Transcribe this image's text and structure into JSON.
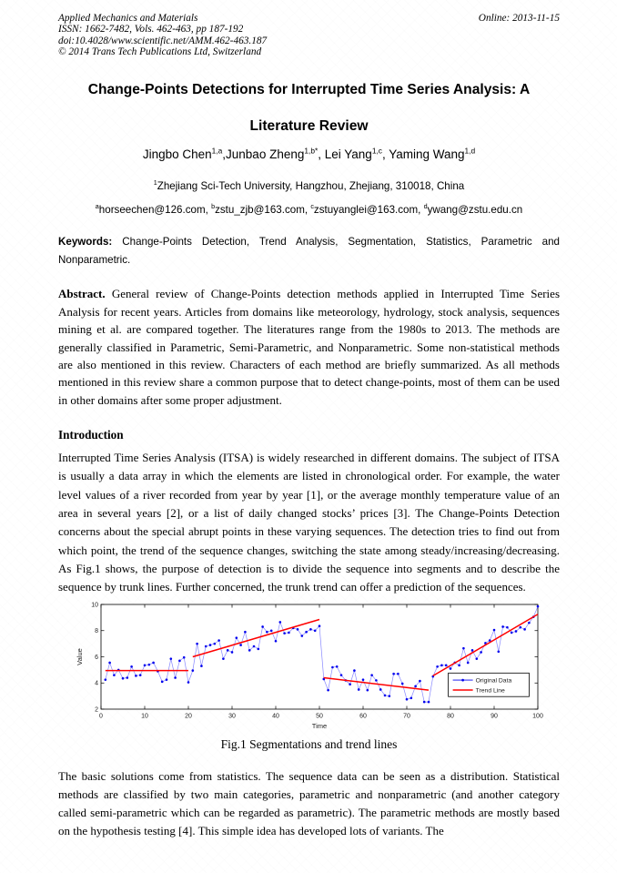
{
  "header": {
    "journal": "Applied Mechanics and Materials",
    "issn_line": "ISSN: 1662-7482, Vols. 462-463, pp 187-192",
    "doi_line": "doi:10.4028/www.scientific.net/AMM.462-463.187",
    "copyright_line": "© 2014 Trans Tech Publications Ltd, Switzerland",
    "online_date": "Online: 2013-11-15"
  },
  "title": {
    "line1": "Change-Points Detections for Interrupted Time Series Analysis: A",
    "line2": "Literature Review"
  },
  "authors": [
    {
      "name": "Jingbo Chen",
      "sup": "1,a",
      "after": ","
    },
    {
      "name": "Junbao Zheng",
      "sup": "1,b*",
      "after": ", "
    },
    {
      "name": "Lei Yang",
      "sup": "1,c",
      "after": ", "
    },
    {
      "name": "Yaming Wang",
      "sup": "1,d",
      "after": ""
    }
  ],
  "affiliation": {
    "sup": "1",
    "text": "Zhejiang Sci-Tech University, Hangzhou, Zhejiang, 310018, China"
  },
  "emails": [
    {
      "sup": "a",
      "text": "horseechen@126.com",
      "after": ", "
    },
    {
      "sup": "b",
      "text": "zstu_zjb@163.com",
      "after": ", "
    },
    {
      "sup": "c",
      "text": "zstuyanglei@163.com",
      "after": ", "
    },
    {
      "sup": "d",
      "text": "ywang@zstu.edu.cn",
      "after": ""
    }
  ],
  "keywords": {
    "label": "Keywords:",
    "text": "Change-Points Detection, Trend Analysis, Segmentation, Statistics, Parametric and Nonparametric."
  },
  "abstract": {
    "label": "Abstract.",
    "text": "General review of Change-Points detection methods applied in Interrupted Time Series Analysis for recent years. Articles from domains like meteorology, hydrology, stock analysis, sequences mining et al. are compared together. The literatures range from the 1980s to 2013. The methods are generally classified in Parametric, Semi-Parametric, and Nonparametric. Some non-statistical methods are also mentioned in this review. Characters of each method are briefly summarized. As all methods mentioned in this review share a common purpose that to detect change-points, most of them can be used in other domains after some proper adjustment."
  },
  "introduction": {
    "heading": "Introduction",
    "paragraph": "Interrupted Time Series Analysis (ITSA) is widely researched in different domains. The subject of ITSA is usually a data array in which the elements are listed in chronological order. For example, the water level values of a river recorded from year by year [1], or the average monthly temperature value of an area in several years [2], or a list of daily changed stocks’ prices [3]. The Change-Points Detection concerns about the special abrupt points in these varying sequences. The detection tries to find out from which point, the trend of the sequence changes, switching the state among steady/increasing/decreasing. As Fig.1 shows, the purpose of detection is to divide the sequence into segments and to describe the sequence by trunk lines. Further concerned, the trunk trend can offer a prediction of the sequences."
  },
  "figure": {
    "caption": "Fig.1 Segmentations and trend lines",
    "chart_data": {
      "type": "line",
      "title": "",
      "xlabel": "Time",
      "ylabel": "Value",
      "xlim": [
        0,
        100
      ],
      "ylim": [
        2,
        10
      ],
      "xticks": [
        0,
        10,
        20,
        30,
        40,
        50,
        60,
        70,
        80,
        90,
        100
      ],
      "yticks": [
        2,
        4,
        6,
        8,
        10
      ],
      "grid": false,
      "legend": [
        "Original Data",
        "Trend Line"
      ],
      "legend_position": "inside right, below middle",
      "legend_box": {
        "x": 0.795,
        "y": 0.655,
        "w": 0.185,
        "h": 0.225
      },
      "series": [
        {
          "name": "Original Data",
          "color": "#0000ee",
          "line_color": "#8888ff",
          "marker": "dot",
          "x_start": 1,
          "x_step": 1,
          "y": [
            4.25,
            5.55,
            4.6,
            5.0,
            4.35,
            4.4,
            5.25,
            4.55,
            4.6,
            5.35,
            5.4,
            5.55,
            4.9,
            4.1,
            4.25,
            5.85,
            4.4,
            5.7,
            5.95,
            4.05,
            4.95,
            7.0,
            5.3,
            6.8,
            6.9,
            7.0,
            7.25,
            5.85,
            6.5,
            6.35,
            7.45,
            6.9,
            7.9,
            6.5,
            6.8,
            6.6,
            8.3,
            7.9,
            8.0,
            7.2,
            8.65,
            7.8,
            7.85,
            8.2,
            8.1,
            7.6,
            7.9,
            8.1,
            8.0,
            8.35,
            4.3,
            3.45,
            5.2,
            5.25,
            4.6,
            4.2,
            3.9,
            4.95,
            3.5,
            4.25,
            3.45,
            4.6,
            4.2,
            3.5,
            3.05,
            3.0,
            4.7,
            4.7,
            3.95,
            2.75,
            2.85,
            3.75,
            4.15,
            2.55,
            2.55,
            4.5,
            5.25,
            5.35,
            5.35,
            5.1,
            5.55,
            5.35,
            6.65,
            5.55,
            6.5,
            5.85,
            6.35,
            7.05,
            7.25,
            8.05,
            6.4,
            8.3,
            8.25,
            7.85,
            7.95,
            8.25,
            8.1,
            8.6,
            9.05,
            9.85
          ]
        },
        {
          "name": "Trend Line",
          "color": "#ff0000",
          "segments": [
            [
              [
                1,
                4.95
              ],
              [
                20,
                4.95
              ]
            ],
            [
              [
                21,
                6.0
              ],
              [
                50,
                8.85
              ]
            ],
            [
              [
                51,
                4.4
              ],
              [
                75,
                3.45
              ]
            ],
            [
              [
                76,
                4.55
              ],
              [
                100,
                9.25
              ]
            ]
          ]
        }
      ]
    }
  },
  "body": {
    "paragraph_after_figure": "The basic solutions come from statistics. The sequence data can be seen as a distribution. Statistical methods are classified by two main categories, parametric and nonparametric (and another category called semi-parametric which can be regarded as parametric). The parametric methods are mostly based on the hypothesis testing [4]. This simple idea has developed lots of variants. The"
  }
}
